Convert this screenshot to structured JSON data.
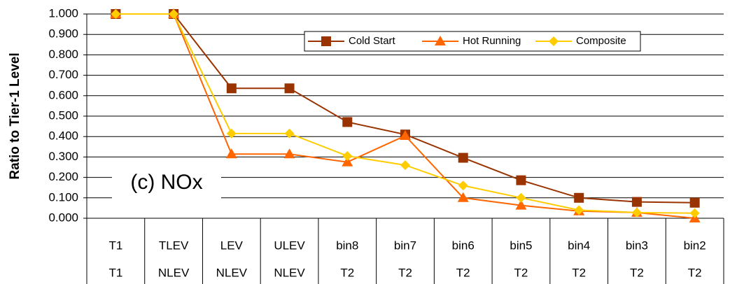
{
  "chart_data": {
    "type": "line",
    "y_label": "Ratio to Tier-1 Level",
    "annotation": "(c) NOx",
    "categories": [
      "T1",
      "TLEV",
      "LEV",
      "ULEV",
      "bin8",
      "bin7",
      "bin6",
      "bin5",
      "bin4",
      "bin3",
      "bin2"
    ],
    "category_groups": [
      "T1",
      "NLEV",
      "NLEV",
      "NLEV",
      "T2",
      "T2",
      "T2",
      "T2",
      "T2",
      "T2",
      "T2"
    ],
    "series": [
      {
        "name": "Cold Start",
        "color": "#993300",
        "marker": "square",
        "values": [
          1,
          1,
          0.636,
          0.636,
          0.471,
          0.41,
          0.296,
          0.186,
          0.1,
          0.08,
          0.076
        ]
      },
      {
        "name": "Hot Running",
        "color": "#ff6600",
        "marker": "triangle",
        "values": [
          1,
          1,
          0.314,
          0.314,
          0.275,
          0.404,
          0.1,
          0.063,
          0.035,
          0.028,
          0
        ]
      },
      {
        "name": "Composite",
        "color": "#ffcc00",
        "marker": "diamond",
        "values": [
          1,
          1,
          0.415,
          0.415,
          0.305,
          0.26,
          0.16,
          0.1,
          0.04,
          0.028,
          0.025
        ]
      }
    ],
    "ylim": [
      0,
      1
    ],
    "yticks": [
      {
        "value": 0,
        "label": "0.000"
      },
      {
        "value": 0.1,
        "label": "0.100"
      },
      {
        "value": 0.2,
        "label": "0.200"
      },
      {
        "value": 0.3,
        "label": "0.300"
      },
      {
        "value": 0.4,
        "label": "0.400"
      },
      {
        "value": 0.5,
        "label": "0.500"
      },
      {
        "value": 0.6,
        "label": "0.600"
      },
      {
        "value": 0.7,
        "label": "0.700"
      },
      {
        "value": 0.8,
        "label": "0.800"
      },
      {
        "value": 0.9,
        "label": "0.900"
      },
      {
        "value": 1,
        "label": "1.000"
      }
    ],
    "grid": true
  }
}
